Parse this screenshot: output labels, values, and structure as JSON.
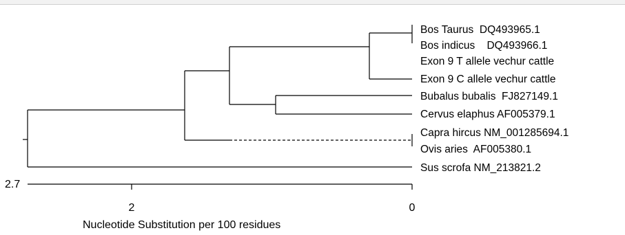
{
  "tree": {
    "leaves": [
      "Bos Taurus  DQ493965.1",
      "Bos indicus    DQ493966.1",
      "Exon 9 T allele vechur cattle",
      "Exon 9 C allele vechur cattle",
      "Bubalus bubalis  FJ827149.1",
      "Cervus elaphus AF005379.1",
      "Capra hircus NM_001285694.1",
      "Ovis aries  AF005380.1",
      "Sus scrofa NM_213821.2"
    ]
  },
  "axis": {
    "max_value": "2.7",
    "ticks": [
      "2",
      "0"
    ],
    "title": "Nucleotide Substitution per 100 residues"
  },
  "colors": {
    "line": "#000000",
    "background": "#ffffff"
  }
}
